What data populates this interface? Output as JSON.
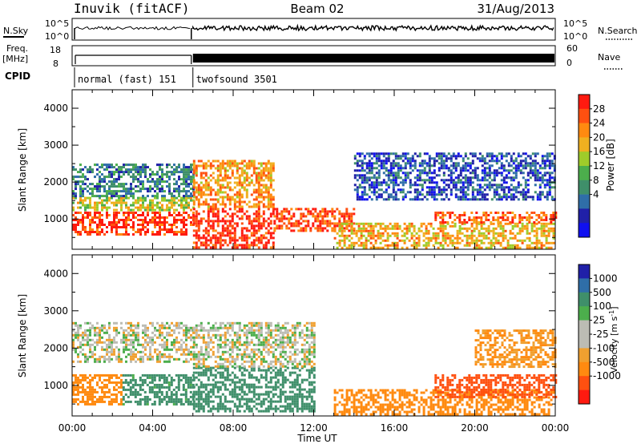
{
  "header": {
    "station": "Inuvik (fitACF)",
    "beam": "Beam 02",
    "date": "31/Aug/2013"
  },
  "noise_panel": {
    "left_label": "N.Sky",
    "right_label": "N.Search",
    "left_ticks": [
      "10^5",
      "10^0"
    ],
    "right_ticks": [
      "10^5",
      "10^0"
    ]
  },
  "freq_panel": {
    "left_label_1": "Freq.",
    "left_label_2": "[MHz]",
    "right_label": "Nave",
    "left_ticks": [
      "18",
      "8"
    ],
    "right_ticks": [
      "60",
      "0"
    ]
  },
  "cpid": {
    "label": "CPID",
    "modes": [
      {
        "name": "normal (fast) 151",
        "start_hour": 0.0,
        "end_hour": 6.0
      },
      {
        "name": "twofsound 3501",
        "start_hour": 6.0,
        "end_hour": 24.0
      }
    ]
  },
  "colors": {
    "power_scale": [
      "#1010f0",
      "#2020a8",
      "#2f6ea8",
      "#3f8f6a",
      "#4cae4c",
      "#9fcc2a",
      "#f0b020",
      "#ff8a10",
      "#ff5010",
      "#ff1a10"
    ],
    "velocity_scale": [
      "#ff1a10",
      "#ff5010",
      "#ff8a10",
      "#f0a030",
      "#bcbcb4",
      "#bcbcb4",
      "#4cae4c",
      "#3f8f6a",
      "#2f6ea8",
      "#2020a8"
    ]
  },
  "chart_data": [
    {
      "type": "heatmap",
      "title": "",
      "xlabel": "Time UT",
      "ylabel": "Slant Range [km]",
      "xlim": [
        0,
        24
      ],
      "ylim": [
        180,
        4500
      ],
      "x_ticks": [
        "00:00",
        "04:00",
        "08:00",
        "12:00",
        "16:00",
        "20:00",
        "00:00"
      ],
      "y_ticks": [
        "1000",
        "2000",
        "3000",
        "4000"
      ],
      "colorbar": {
        "label": "Power [dB]",
        "ticks": [
          "28",
          "24",
          "20",
          "16",
          "12",
          "8",
          "4"
        ],
        "range": [
          0,
          30
        ]
      },
      "echo_regions": [
        {
          "t0": 0.0,
          "t1": 6.0,
          "r0": 600,
          "r1": 1200,
          "value": 27
        },
        {
          "t0": 0.0,
          "t1": 6.0,
          "r0": 1200,
          "r1": 1600,
          "value": 17
        },
        {
          "t0": 0.0,
          "t1": 6.0,
          "r0": 1600,
          "r1": 2500,
          "value": 9
        },
        {
          "t0": 6.0,
          "t1": 10.0,
          "r0": 200,
          "r1": 1300,
          "value": 28
        },
        {
          "t0": 6.0,
          "t1": 10.0,
          "r0": 1300,
          "r1": 2600,
          "value": 22
        },
        {
          "t0": 10.0,
          "t1": 14.0,
          "r0": 700,
          "r1": 1300,
          "value": 26
        },
        {
          "t0": 13.0,
          "t1": 24.0,
          "r0": 200,
          "r1": 900,
          "value": 20
        },
        {
          "t0": 18.0,
          "t1": 24.0,
          "r0": 900,
          "r1": 1200,
          "value": 25
        },
        {
          "t0": 14.0,
          "t1": 24.0,
          "r0": 1500,
          "r1": 2800,
          "value": 6
        }
      ]
    },
    {
      "type": "heatmap",
      "title": "",
      "xlabel": "Time UT",
      "ylabel": "Slant Range [km]",
      "xlim": [
        0,
        24
      ],
      "ylim": [
        180,
        4500
      ],
      "x_ticks": [
        "00:00",
        "04:00",
        "08:00",
        "12:00",
        "16:00",
        "20:00",
        "00:00"
      ],
      "y_ticks": [
        "1000",
        "2000",
        "3000",
        "4000"
      ],
      "colorbar": {
        "label": "Velocity [m s^-1]",
        "ticks": [
          "1000",
          "500",
          "100",
          "25",
          "-25",
          "-100",
          "-500",
          "-1000"
        ],
        "range": [
          -1000,
          1000
        ]
      },
      "echo_regions": [
        {
          "t0": 0.0,
          "t1": 2.5,
          "r0": 500,
          "r1": 1300,
          "value": -200
        },
        {
          "t0": 0.0,
          "t1": 6.0,
          "r0": 1600,
          "r1": 2700,
          "value": 0
        },
        {
          "t0": 2.5,
          "t1": 6.0,
          "r0": 500,
          "r1": 1300,
          "value": 150
        },
        {
          "t0": 6.0,
          "t1": 12.0,
          "r0": 300,
          "r1": 1500,
          "value": 300
        },
        {
          "t0": 6.0,
          "t1": 12.0,
          "r0": 1500,
          "r1": 2700,
          "value": 0
        },
        {
          "t0": 13.0,
          "t1": 24.0,
          "r0": 200,
          "r1": 900,
          "value": -200
        },
        {
          "t0": 18.0,
          "t1": 24.0,
          "r0": 700,
          "r1": 1300,
          "value": -600
        },
        {
          "t0": 20.0,
          "t1": 24.0,
          "r0": 1500,
          "r1": 2500,
          "value": -100
        }
      ]
    }
  ]
}
